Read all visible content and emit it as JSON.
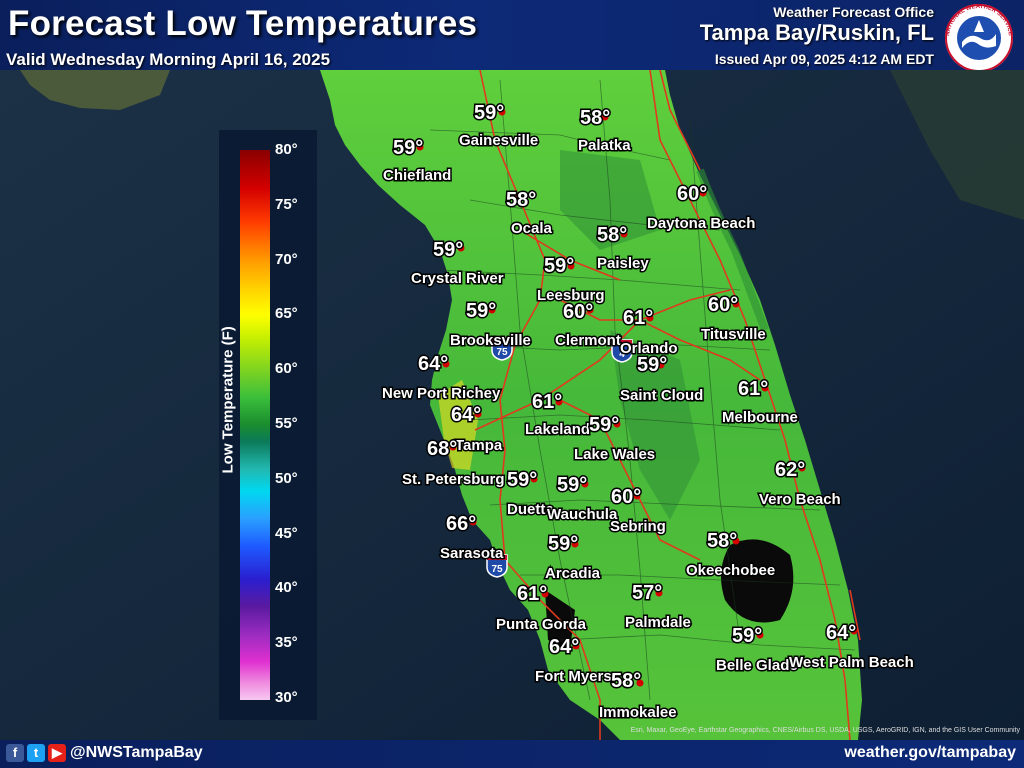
{
  "header": {
    "title": "Forecast Low Temperatures",
    "subtitle": "Valid Wednesday Morning April 16, 2025",
    "office_label": "Weather Forecast Office",
    "office_name": "Tampa Bay/Ruskin, FL",
    "issued": "Issued Apr 09, 2025 4:12 AM EDT",
    "logo": {
      "text": "NATIONAL WEATHER SERVICE",
      "icon": "nws-logo-icon"
    }
  },
  "legend": {
    "title": "Low Temperature (F)",
    "ticks": [
      "80°",
      "75°",
      "70°",
      "65°",
      "60°",
      "55°",
      "50°",
      "45°",
      "40°",
      "35°",
      "30°"
    ]
  },
  "highway_shields": [
    "75",
    "4",
    "75"
  ],
  "cities": [
    {
      "name": "Gainesville",
      "temp": "59°"
    },
    {
      "name": "Palatka",
      "temp": "58°"
    },
    {
      "name": "Chiefland",
      "temp": "59°"
    },
    {
      "name": "Ocala",
      "temp": "58°"
    },
    {
      "name": "Daytona Beach",
      "temp": "60°"
    },
    {
      "name": "Crystal River",
      "temp": "59°"
    },
    {
      "name": "Paisley",
      "temp": "58°"
    },
    {
      "name": "Leesburg",
      "temp": "59°"
    },
    {
      "name": "Brooksville",
      "temp": "59°"
    },
    {
      "name": "Clermont",
      "temp": "60°"
    },
    {
      "name": "Orlando",
      "temp": "61°"
    },
    {
      "name": "Titusville",
      "temp": "60°"
    },
    {
      "name": "New Port Richey",
      "temp": "64°"
    },
    {
      "name": "Saint Cloud",
      "temp": "59°"
    },
    {
      "name": "Tampa",
      "temp": "64°"
    },
    {
      "name": "Lakeland",
      "temp": "61°"
    },
    {
      "name": "Melbourne",
      "temp": "61°"
    },
    {
      "name": "St. Petersburg",
      "temp": "68°"
    },
    {
      "name": "Lake Wales",
      "temp": "59°"
    },
    {
      "name": "Vero Beach",
      "temp": "62°"
    },
    {
      "name": "Duette",
      "temp": "59°"
    },
    {
      "name": "Wauchula",
      "temp": "59°"
    },
    {
      "name": "Sebring",
      "temp": "60°"
    },
    {
      "name": "Sarasota",
      "temp": "66°"
    },
    {
      "name": "Arcadia",
      "temp": "59°"
    },
    {
      "name": "Okeechobee",
      "temp": "58°"
    },
    {
      "name": "Punta Gorda",
      "temp": "61°"
    },
    {
      "name": "Palmdale",
      "temp": "57°"
    },
    {
      "name": "Fort Myers",
      "temp": "64°"
    },
    {
      "name": "Belle Glade",
      "temp": "59°"
    },
    {
      "name": "West Palm Beach",
      "temp": "64°"
    },
    {
      "name": "Immokalee",
      "temp": "58°"
    }
  ],
  "footer": {
    "social_icons": [
      "facebook-icon",
      "twitter-icon",
      "youtube-icon"
    ],
    "handle": "@NWSTampaBay",
    "website": "weather.gov/tampabay",
    "attribution": "Esri, Maxar, GeoEye, Earthstar Geographics, CNES/Airbus DS, USDA, USGS, AeroGRID, IGN, and the GIS User Community"
  },
  "colors": {
    "header_bg": "#0d2a78",
    "land_green": "#4cbf3a",
    "city_dot": "#d40000",
    "roads": "#e03a1e"
  }
}
